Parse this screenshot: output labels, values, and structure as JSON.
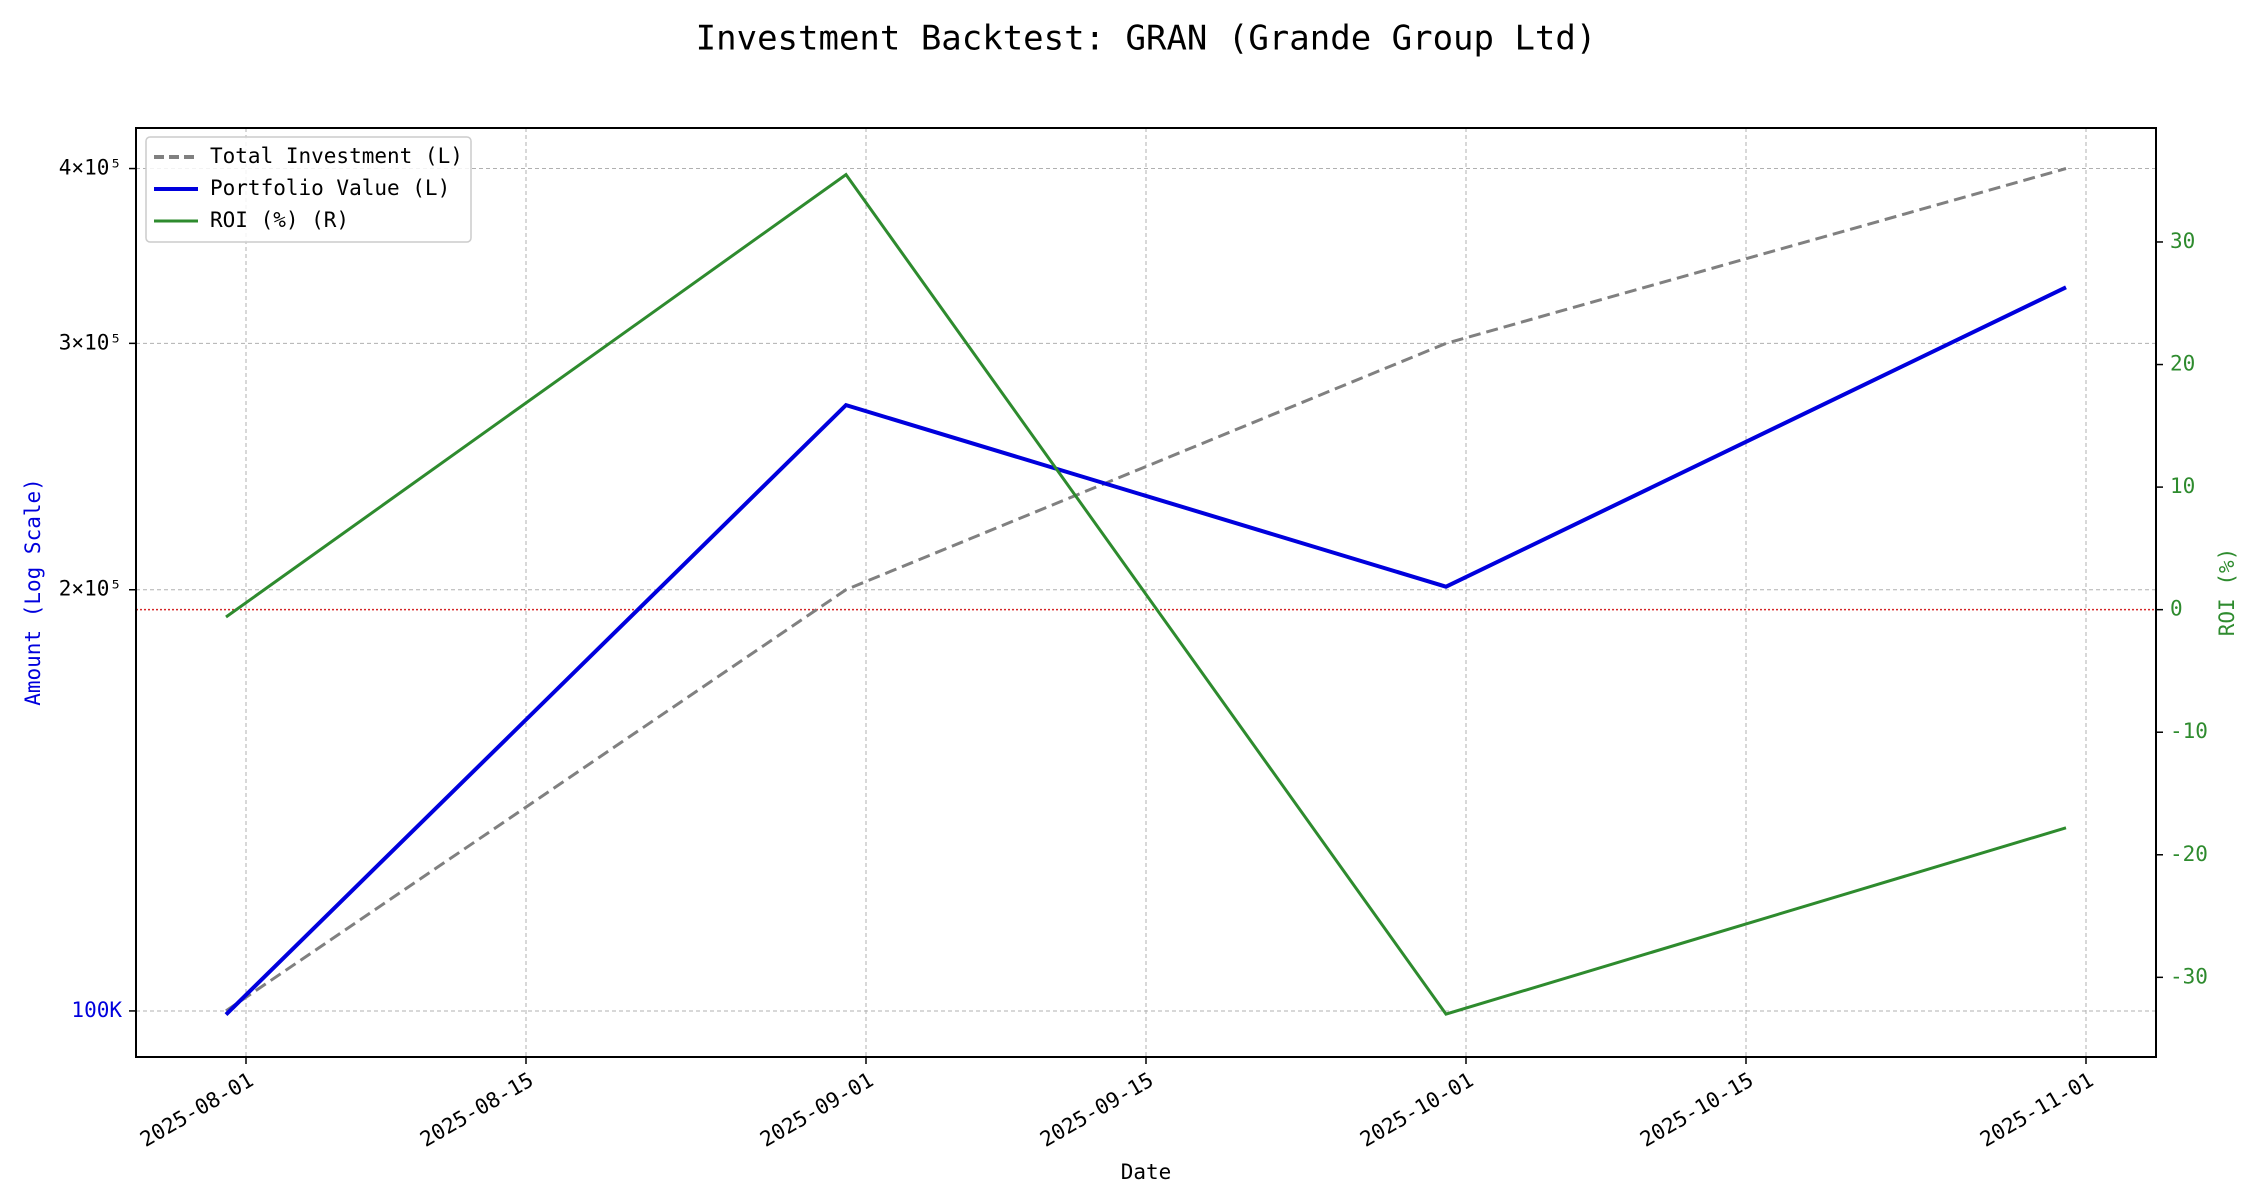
{
  "chart_data": {
    "type": "line",
    "title": "Investment Backtest: GRAN (Grande Group Ltd)",
    "x_label": "Date",
    "y_label": "Amount (Log Scale)",
    "y2_label": "ROI (%)",
    "x": [
      "2025-07-31",
      "2025-08-31",
      "2025-09-30",
      "2025-10-31"
    ],
    "xlim": [
      "2025-07-26T12:00",
      "2025-11-04T12:00"
    ],
    "xticks": [
      "2025-08-01",
      "2025-08-15",
      "2025-09-01",
      "2025-09-15",
      "2025-10-01",
      "2025-10-15",
      "2025-11-01"
    ],
    "ylim": [
      92700,
      427600
    ],
    "yticks": [
      {
        "value": 100000,
        "label": "100K"
      },
      {
        "value": 200000,
        "label": "2×10⁵"
      },
      {
        "value": 300000,
        "label": "3×10⁵"
      },
      {
        "value": 400000,
        "label": "4×10⁵"
      }
    ],
    "y_log": true,
    "y2lim": [
      -36.5,
      39.3
    ],
    "y2ticks": [
      -30,
      -20,
      -10,
      0,
      10,
      20,
      30
    ],
    "grid": true,
    "legend": "upper left",
    "reference_line": {
      "axis": "y2",
      "value": 0,
      "color": "#d62728"
    },
    "series": [
      {
        "name": "Total Investment (L)",
        "color": "#808080",
        "dash": true,
        "values": [
          100000,
          200000,
          300000,
          400000
        ]
      },
      {
        "name": "Portfolio Value (L)",
        "color": "#0000dd",
        "values": [
          99400,
          271000,
          201000,
          329000
        ]
      },
      {
        "name": "ROI (%) (R)",
        "color": "#2e8b2e",
        "axis": "y2",
        "values": [
          -0.6,
          35.5,
          -33,
          -17.8
        ]
      }
    ]
  }
}
